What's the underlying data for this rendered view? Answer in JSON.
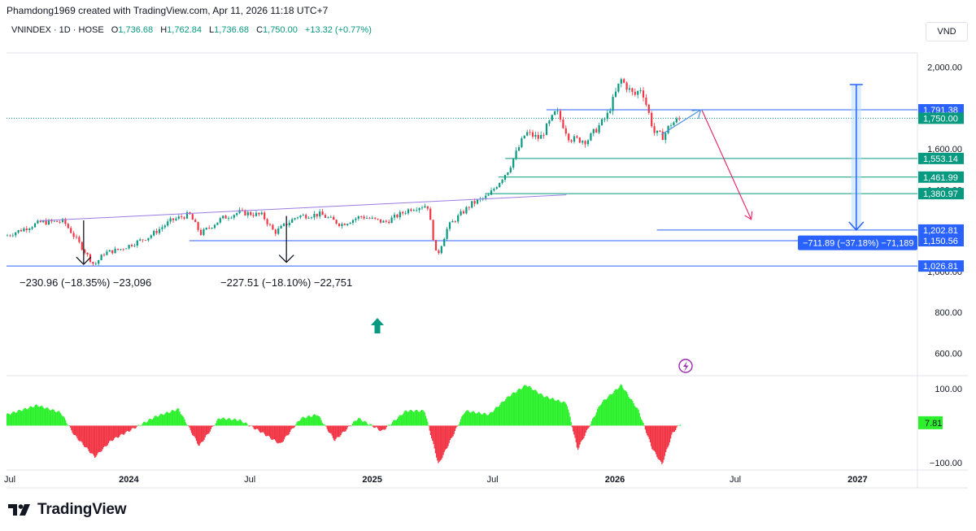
{
  "header": {
    "credit": "Phamdong1969 created with TradingView.com, Apr 11, 2026 11:18 UTC+7",
    "symbol": "VNINDEX · 1D · HOSE",
    "open_label": "O",
    "open": "1,736.68",
    "high_label": "H",
    "high": "1,762.84",
    "low_label": "L",
    "low": "1,736.68",
    "close_label": "C",
    "close": "1,750.00",
    "change": "+13.32 (+0.77%)",
    "currency": "VND"
  },
  "branding": {
    "name": "TradingView"
  },
  "icons": [
    "arrow-up-icon",
    "lightning-icon",
    "tradingview-logo-icon"
  ],
  "colors": {
    "up": "#089981",
    "down": "#f23645",
    "osc_up": "#2cf02c",
    "osc_down": "#f23645",
    "line_blue": "#2962ff",
    "trendline_purple": "#9c7ce6",
    "projection_pink": "#e91e63"
  },
  "chart_data": [
    {
      "type": "candlestick",
      "title": "VNINDEX · 1D · HOSE",
      "x_ticks": [
        "Jul",
        "2024",
        "Jul",
        "2025",
        "Jul",
        "2026",
        "Jul",
        "2027"
      ],
      "x_range": [
        "2023-07-01",
        "2027-04-01"
      ],
      "y_ticks": [
        {
          "value": 2000,
          "label": "2,000.00"
        },
        {
          "value": 1600,
          "label": "1,600.00"
        },
        {
          "value": 1400,
          "label": "1,400.00"
        },
        {
          "value": 1000,
          "label": "1,000.00"
        },
        {
          "value": 800,
          "label": "800.00"
        },
        {
          "value": 600,
          "label": "600.00"
        }
      ],
      "ylim": [
        490,
        2070
      ],
      "price_path": [
        [
          "2023-07-01",
          1175
        ],
        [
          "2023-08-20",
          1240
        ],
        [
          "2023-09-25",
          1245
        ],
        [
          "2023-10-20",
          1130
        ],
        [
          "2023-11-10",
          1030
        ],
        [
          "2023-11-25",
          1090
        ],
        [
          "2023-12-20",
          1110
        ],
        [
          "2024-01-31",
          1170
        ],
        [
          "2024-03-05",
          1250
        ],
        [
          "2024-04-01",
          1280
        ],
        [
          "2024-04-18",
          1185
        ],
        [
          "2024-05-20",
          1260
        ],
        [
          "2024-06-15",
          1290
        ],
        [
          "2024-07-20",
          1275
        ],
        [
          "2024-08-07",
          1190
        ],
        [
          "2024-09-10",
          1270
        ],
        [
          "2024-10-15",
          1280
        ],
        [
          "2024-11-15",
          1230
        ],
        [
          "2024-12-15",
          1270
        ],
        [
          "2025-01-20",
          1240
        ],
        [
          "2025-03-01",
          1310
        ],
        [
          "2025-03-25",
          1325
        ],
        [
          "2025-04-08",
          1070
        ],
        [
          "2025-04-25",
          1220
        ],
        [
          "2025-05-30",
          1330
        ],
        [
          "2025-06-25",
          1370
        ],
        [
          "2025-07-25",
          1500
        ],
        [
          "2025-08-20",
          1680
        ],
        [
          "2025-09-10",
          1650
        ],
        [
          "2025-10-05",
          1785
        ],
        [
          "2025-10-25",
          1650
        ],
        [
          "2025-11-20",
          1640
        ],
        [
          "2025-12-20",
          1760
        ],
        [
          "2026-01-10",
          1940
        ],
        [
          "2026-01-30",
          1860
        ],
        [
          "2026-02-10",
          1900
        ],
        [
          "2026-03-01",
          1680
        ],
        [
          "2026-03-15",
          1660
        ],
        [
          "2026-03-25",
          1720
        ],
        [
          "2026-04-10",
          1750
        ]
      ],
      "horizontal_levels": [
        {
          "value": 1791.38,
          "label": "1,791.38"
        },
        {
          "value": 1750.0,
          "label": "1,750.00"
        },
        {
          "value": 1553.14,
          "label": "1,553.14"
        },
        {
          "value": 1461.99,
          "label": "1,461.99"
        },
        {
          "value": 1380.97,
          "label": "1,380.97"
        },
        {
          "value": 1202.81,
          "label": "1,202.81"
        },
        {
          "value": 1150.56,
          "label": "1,150.56"
        },
        {
          "value": 1026.81,
          "label": "1,026.81"
        }
      ],
      "annotations": [
        {
          "text": "−230.96 (−18.35%) −23,096"
        },
        {
          "text": "−227.51 (−18.10%) −22,751"
        },
        {
          "text": "−711.89 (−37.18%) −71,189"
        }
      ]
    },
    {
      "type": "histogram",
      "title": "",
      "y_ticks": [
        {
          "value": 100,
          "label": "100.00"
        },
        {
          "value": -100,
          "label": "−100.00"
        }
      ],
      "ylim": [
        -120,
        135
      ],
      "last_value_label": "7.81",
      "values_path": [
        [
          "2023-07-01",
          30
        ],
        [
          "2023-08-15",
          55
        ],
        [
          "2023-09-20",
          35
        ],
        [
          "2023-10-10",
          -25
        ],
        [
          "2023-11-10",
          -85
        ],
        [
          "2023-12-05",
          -40
        ],
        [
          "2024-01-10",
          -5
        ],
        [
          "2024-02-10",
          25
        ],
        [
          "2024-03-15",
          45
        ],
        [
          "2024-04-15",
          -55
        ],
        [
          "2024-05-15",
          20
        ],
        [
          "2024-06-15",
          15
        ],
        [
          "2024-07-15",
          -15
        ],
        [
          "2024-08-15",
          -50
        ],
        [
          "2024-09-15",
          20
        ],
        [
          "2024-10-10",
          30
        ],
        [
          "2024-11-05",
          -40
        ],
        [
          "2024-12-10",
          20
        ],
        [
          "2025-01-15",
          -15
        ],
        [
          "2025-02-20",
          40
        ],
        [
          "2025-03-20",
          40
        ],
        [
          "2025-04-10",
          -105
        ],
        [
          "2025-05-20",
          40
        ],
        [
          "2025-06-25",
          30
        ],
        [
          "2025-07-25",
          80
        ],
        [
          "2025-08-20",
          110
        ],
        [
          "2025-09-15",
          80
        ],
        [
          "2025-10-20",
          60
        ],
        [
          "2025-11-05",
          -65
        ],
        [
          "2025-12-10",
          60
        ],
        [
          "2026-01-10",
          110
        ],
        [
          "2026-02-05",
          40
        ],
        [
          "2026-02-25",
          -60
        ],
        [
          "2026-03-12",
          -105
        ],
        [
          "2026-03-28",
          -20
        ],
        [
          "2026-04-10",
          8
        ]
      ]
    }
  ]
}
